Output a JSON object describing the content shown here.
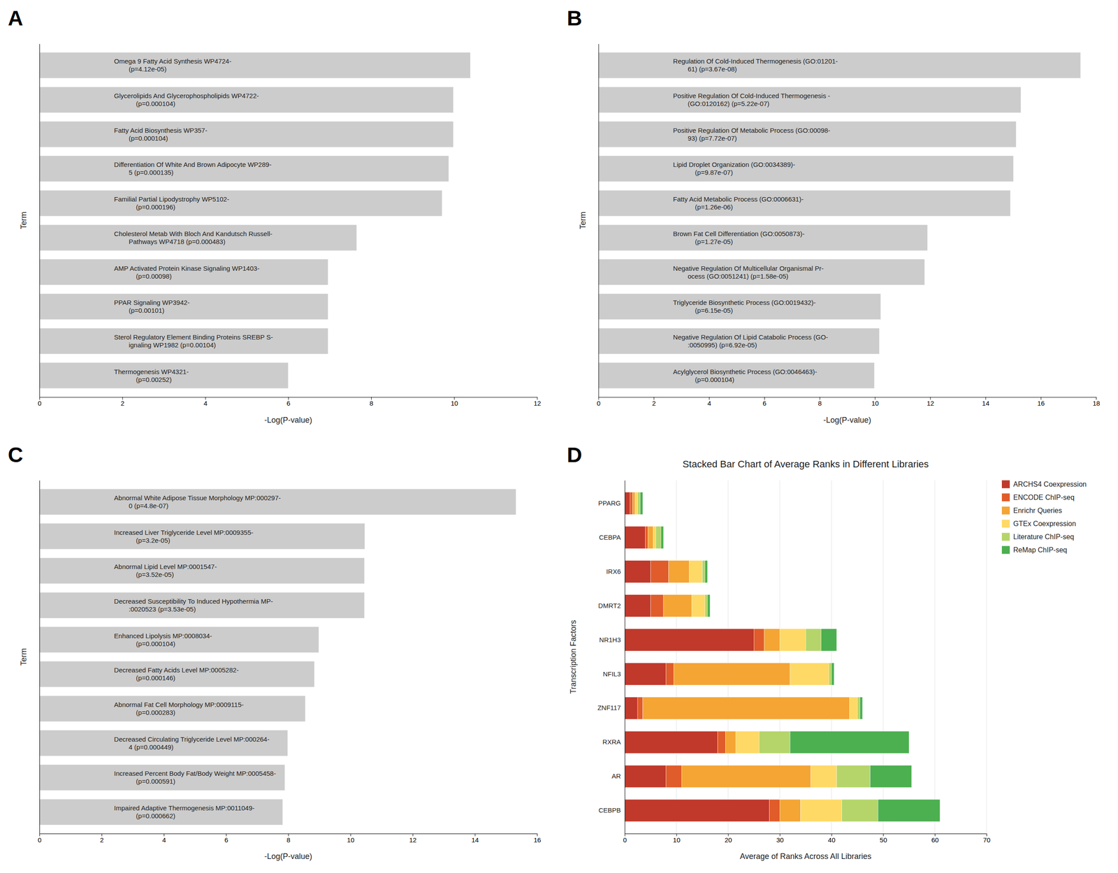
{
  "chart_data": [
    {
      "type": "bar",
      "orientation": "horizontal",
      "annotations": [
        "A"
      ],
      "categories": [
        "Omega 9 Fatty Acid Synthesis WP4724-\n        (p=4.12e-05)",
        "Glycerolipids And Glycerophospholipids WP4722-\n            (p=0.000104)",
        "Fatty Acid Biosynthesis WP357-\n        (p=0.000104)",
        "Differentiation Of White And Brown Adipocyte WP289-\n        5 (p=0.000135)",
        "Familial Partial Lipodystrophy WP5102-\n            (p=0.000196)",
        "Cholesterol Metab With Bloch And Kandutsch Russell-\n        Pathways WP4718 (p=0.000483)",
        "AMP Activated Protein Kinase Signaling WP1403-\n            (p=0.00098)",
        "PPAR Signaling WP3942-\n        (p=0.00101)",
        "Sterol Regulatory Element Binding Proteins SREBP S-\n        ignaling WP1982 (p=0.00104)",
        "Thermogenesis WP4321-\n            (p=0.00252)"
      ],
      "values": [
        10.39,
        9.98,
        9.98,
        9.87,
        9.71,
        7.65,
        6.96,
        6.96,
        6.96,
        6.0
      ],
      "color": "#cccccc",
      "xlabel": "-Log(P-value)",
      "ylabel": "Term",
      "xlim": [
        0,
        12
      ],
      "xticks": [
        0,
        2,
        4,
        6,
        8,
        10,
        12
      ],
      "grid": false,
      "tick_labels": "x"
    },
    {
      "type": "bar",
      "orientation": "horizontal",
      "annotations": [
        "B"
      ],
      "categories": [
        "Regulation Of Cold-Induced Thermogenesis (GO:01201-\n        61) (p=3.67e-08)",
        "Positive Regulation Of Cold-Induced Thermogenesis -\n        (GO:0120162) (p=5.22e-07)",
        "Positive Regulation Of Metabolic Process (GO:00098-\n        93) (p=7.72e-07)",
        "Lipid Droplet Organization (GO:0034389)-\n            (p=9.87e-07)",
        "Fatty Acid Metabolic Process (GO:0006631)-\n            (p=1.26e-06)",
        "Brown Fat Cell Differentiation (GO:0050873)-\n            (p=1.27e-05)",
        "Negative Regulation Of Multicellular Organismal Pr-\n        ocess (GO:0051241) (p=1.58e-05)",
        "Triglyceride Biosynthetic Process (GO:0019432)-\n            (p=6.15e-05)",
        "Negative Regulation Of Lipid Catabolic Process (GO-\n        :0050995) (p=6.92e-05)",
        "Acylglycerol Biosynthetic Process (GO:0046463)-\n            (p=0.000104)"
      ],
      "values": [
        17.44,
        15.28,
        15.11,
        15.01,
        14.9,
        11.9,
        11.8,
        10.21,
        10.16,
        9.98
      ],
      "color": "#cccccc",
      "xlabel": "-Log(P-value)",
      "ylabel": "Term",
      "xlim": [
        0,
        18
      ],
      "xticks": [
        0,
        2,
        4,
        6,
        8,
        10,
        12,
        14,
        16,
        18
      ],
      "grid": false,
      "tick_labels": "x"
    },
    {
      "type": "bar",
      "orientation": "horizontal",
      "annotations": [
        "C"
      ],
      "categories": [
        "Abnormal White Adipose Tissue Morphology MP:000297-\n        0 (p=4.8e-07)",
        "Increased Liver Triglyceride Level MP:0009355-\n            (p=3.2e-05)",
        "Abnormal Lipid Level MP:0001547-\n            (p=3.52e-05)",
        "Decreased Susceptibility To Induced Hypothermia MP-\n        :0020523 (p=3.53e-05)",
        "Enhanced Lipolysis MP:0008034-\n            (p=0.000104)",
        "Decreased Fatty Acids Level MP:0005282-\n            (p=0.000146)",
        "Abnormal Fat Cell Morphology MP:0009115-\n            (p=0.000283)",
        "Decreased Circulating Triglyceride Level MP:000264-\n        4 (p=0.000449)",
        "Increased Percent Body Fat/Body Weight MP:0005458-\n            (p=0.000591)",
        "Impaired Adaptive Thermogenesis MP:0011049-\n            (p=0.000662)"
      ],
      "values": [
        15.32,
        10.46,
        10.45,
        10.45,
        8.98,
        8.84,
        8.55,
        7.98,
        7.89,
        7.82
      ],
      "color": "#cccccc",
      "xlabel": "-Log(P-value)",
      "ylabel": "Term",
      "xlim": [
        0,
        16
      ],
      "xticks": [
        0,
        2,
        4,
        6,
        8,
        10,
        12,
        14,
        16
      ],
      "grid": false,
      "tick_labels": "x"
    },
    {
      "type": "bar",
      "orientation": "horizontal",
      "stacked": true,
      "annotations": [
        "D"
      ],
      "title": "Stacked Bar Chart of Average Ranks in Different Libraries",
      "categories": [
        "PPARG",
        "CEBPA",
        "IRX6",
        "DMRT2",
        "NR1H3",
        "NFIL3",
        "ZNF117",
        "RXRA",
        "AR",
        "CEBPB"
      ],
      "series": [
        {
          "name": "ARCHS4 Coexpression",
          "color": "#c0392b",
          "values": [
            1.0,
            4.0,
            5.0,
            5.0,
            25.0,
            8.0,
            2.5,
            18.0,
            8.0,
            28.0
          ]
        },
        {
          "name": "ENCODE ChIP-seq",
          "color": "#e05c2a",
          "values": [
            0.5,
            0.5,
            3.5,
            2.5,
            2.0,
            1.5,
            1.0,
            1.5,
            3.0,
            2.0
          ]
        },
        {
          "name": "Enrichr Queries",
          "color": "#f4a534",
          "values": [
            0.5,
            1.0,
            4.0,
            5.5,
            3.0,
            22.5,
            40.0,
            2.0,
            25.0,
            4.0
          ]
        },
        {
          "name": "GTEx Coexpression",
          "color": "#ffd966",
          "values": [
            0.5,
            0.5,
            2.5,
            2.5,
            5.0,
            7.5,
            1.5,
            4.5,
            5.0,
            8.0
          ]
        },
        {
          "name": "Literature ChIP-seq",
          "color": "#b5d56a",
          "values": [
            0.5,
            1.0,
            0.5,
            0.5,
            3.0,
            0.5,
            0.5,
            6.0,
            6.5,
            7.0
          ]
        },
        {
          "name": "ReMap ChIP-seq",
          "color": "#4caf50",
          "values": [
            0.5,
            0.5,
            0.5,
            0.5,
            3.0,
            0.5,
            0.5,
            23.0,
            8.0,
            12.0
          ]
        }
      ],
      "xlabel": "Average of Ranks Across All Libraries",
      "ylabel": "Transcription Factors",
      "xlim": [
        0,
        70
      ],
      "xticks": [
        0,
        10,
        20,
        30,
        40,
        50,
        60,
        70
      ],
      "grid": true,
      "legend": "right"
    }
  ]
}
